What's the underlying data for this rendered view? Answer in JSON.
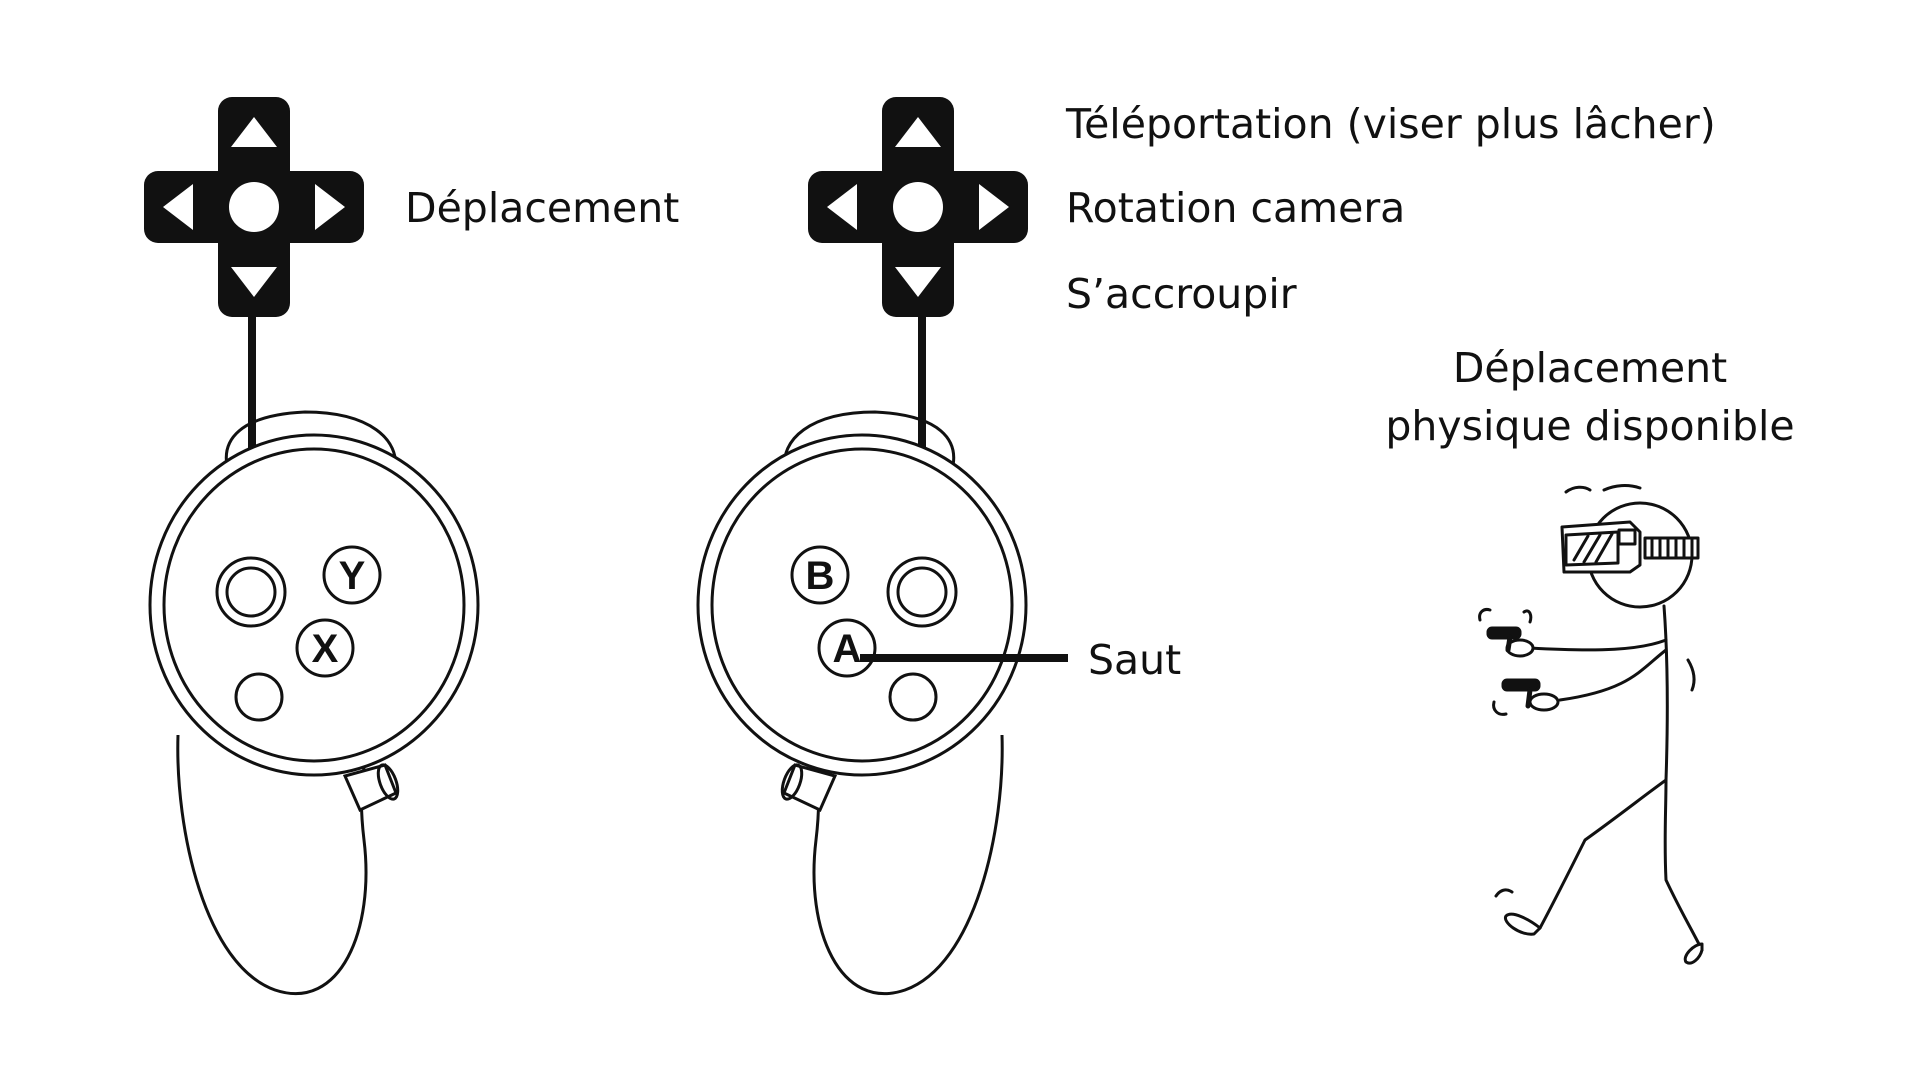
{
  "left_controller": {
    "thumbstick_label": "Déplacement",
    "buttons": [
      "Y",
      "X"
    ]
  },
  "right_controller": {
    "thumbstick_labels": {
      "up": "Téléportation (viser plus lâcher)",
      "sides": "Rotation camera",
      "down": "S’accroupir"
    },
    "buttons": [
      "B",
      "A"
    ],
    "a_button_label": "Saut"
  },
  "physical_movement": {
    "line1": "Déplacement",
    "line2": "physique disponible"
  },
  "colors": {
    "ink": "#111111",
    "background": "#ffffff"
  },
  "icons": [
    "dpad-icon",
    "controller-icon",
    "vr-walker-figure"
  ]
}
